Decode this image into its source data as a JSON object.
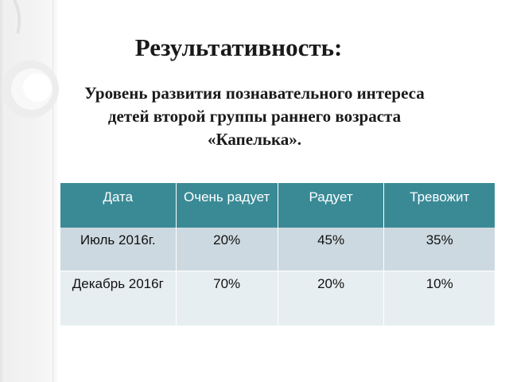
{
  "slide": {
    "title": "Результативность:",
    "subtitle_line_1": "Уровень развития познавательного интереса",
    "subtitle_line_2": "детей второй группы раннего возраста",
    "subtitle_line_3": "«Капелька»."
  },
  "colors": {
    "header_bg": "#3a8a96",
    "row_1_bg": "#cdd9e0",
    "row_2_bg": "#e7eef1"
  },
  "table": {
    "headers": [
      "Дата",
      "Очень радует",
      "Радует",
      "Тревожит"
    ],
    "rows": [
      {
        "date": "Июль 2016г.",
        "very_pleased": "20%",
        "pleased": "45%",
        "worried": "35%"
      },
      {
        "date": "Декабрь 2016г",
        "very_pleased": "70%",
        "pleased": "20%",
        "worried": "10%"
      }
    ]
  }
}
